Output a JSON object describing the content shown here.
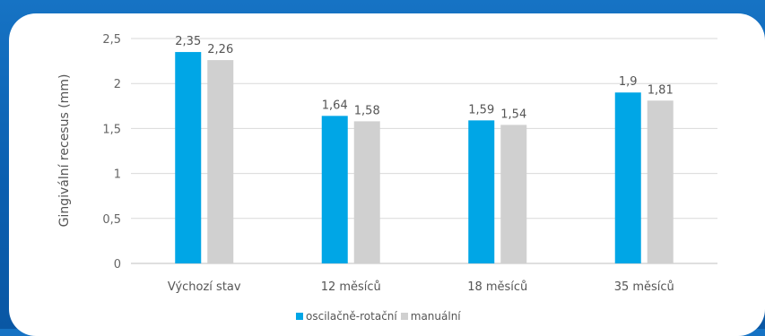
{
  "chart_data": {
    "type": "bar",
    "categories": [
      "Výchozí stav",
      "12 měsíců",
      "18 měsíců",
      "35 měsíců"
    ],
    "series": [
      {
        "name": "oscilačně-rotační",
        "values": [
          2.35,
          1.64,
          1.59,
          1.9
        ],
        "labels": [
          "2,35",
          "1,64",
          "1,59",
          "1,9"
        ],
        "color": "#00a6e6"
      },
      {
        "name": "manuální",
        "values": [
          2.26,
          1.58,
          1.54,
          1.81
        ],
        "labels": [
          "2,26",
          "1,58",
          "1,54",
          "1,81"
        ],
        "color": "#d0d0d0"
      }
    ],
    "ylabel": "Gingivální recesus (mm)",
    "yticks": [
      "0",
      "0,5",
      "1",
      "1,5",
      "2",
      "2,5"
    ],
    "ylim": [
      0,
      2.5
    ],
    "grid": true,
    "legend": "bottom-center"
  }
}
